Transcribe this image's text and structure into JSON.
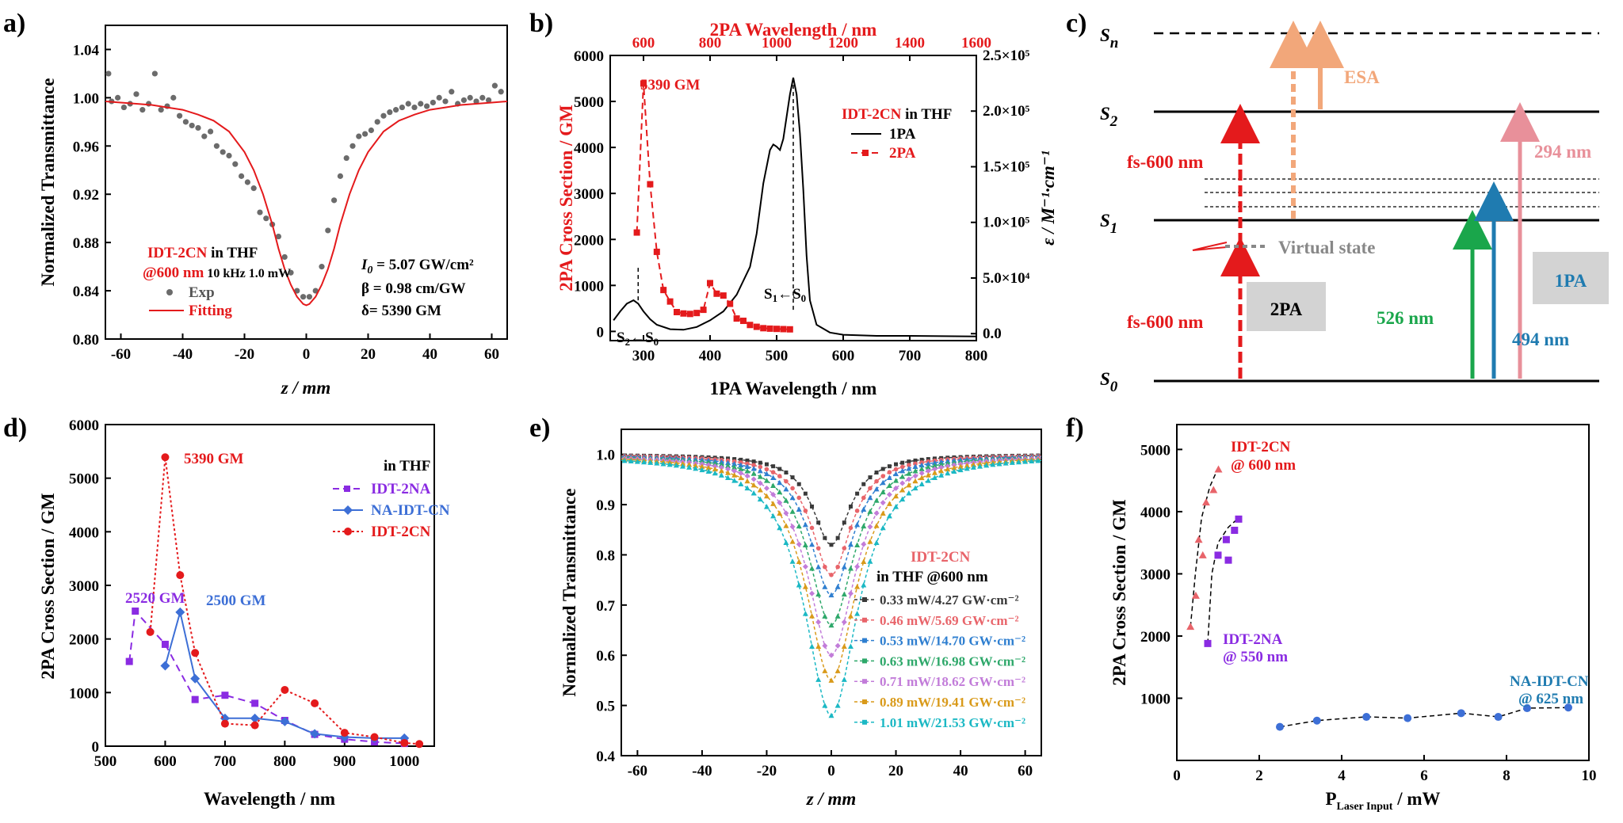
{
  "colors": {
    "red": "#e41a1c",
    "gray": "#6b6b6b",
    "blue": "#3d6fd6",
    "purple": "#8a2be2",
    "black": "#000000",
    "orange": "#f2a77a",
    "pink": "#e8909a",
    "green": "#1aa64b",
    "teal": "#1f7bb0"
  },
  "panels": {
    "a": {
      "letter": "a)",
      "annotations": {
        "compound": "IDT-2CN",
        "solvent": " in THF",
        "wavelength": "@600 nm",
        "conditions": " 10 kHz 1.0 mW",
        "i0": "I",
        "i0_sub": "0",
        "i0_value": " = 5.07 GW/cm²",
        "beta": "β = 0.98 cm/GW",
        "delta": "δ= 5390 GM"
      },
      "legend": [
        "Exp",
        "Fitting"
      ]
    },
    "b": {
      "letter": "b)",
      "annotations": {
        "peak": "5390 GM",
        "compound": "IDT-2CN",
        "solvent": " in THF",
        "s1": "S",
        "s1_sub": "1",
        "s1_arrow": "←S",
        "s1_sub0": "0",
        "s2": "S",
        "s2_sub": "2",
        "s2_arrow": "←S",
        "s2_sub0": "0"
      },
      "legend": [
        "1PA",
        "2PA"
      ]
    },
    "c": {
      "letter": "c)",
      "levels": {
        "sn": "S",
        "sn_sub": "n",
        "s2": "S",
        "s2_sub": "2",
        "s1": "S",
        "s1_sub": "1",
        "s0": "S",
        "s0_sub": "0"
      },
      "labels": {
        "esa": "ESA",
        "fs_top": "fs-600 nm",
        "fs_bottom": "fs-600 nm",
        "virtual": "Virtual state",
        "twopa": "2PA",
        "onepa": "1PA",
        "nm526": "526 nm",
        "nm494": "494 nm",
        "nm294": "294 nm"
      }
    },
    "d": {
      "letter": "d)",
      "annotations": {
        "peak": "5390 GM",
        "na_2na": "2520 GM",
        "na_cn": "2500 GM",
        "legend_title": "in THF"
      },
      "legend": [
        "IDT-2NA",
        "NA-IDT-CN",
        "IDT-2CN"
      ]
    },
    "e": {
      "letter": "e)",
      "annotations": {
        "compound": "IDT-2CN",
        "solvent": "in THF @600 nm"
      },
      "legend": [
        "0.33 mW/4.27 GW·cm⁻²",
        "0.46 mW/5.69 GW·cm⁻²",
        "0.53 mW/14.70 GW·cm⁻²",
        "0.63 mW/16.98 GW·cm⁻²",
        "0.71 mW/18.62 GW·cm⁻²",
        "0.89 mW/19.41 GW·cm⁻²",
        "1.01 mW/21.53 GW·cm⁻²"
      ]
    },
    "f": {
      "letter": "f)",
      "annotations": {
        "idt2cn": "IDT-2CN",
        "idt2cn_wl": "@ 600 nm",
        "idt2na": "IDT-2NA",
        "idt2na_wl": "@ 550 nm",
        "naidtcn": "NA-IDT-CN",
        "naidtcn_wl": "@ 625 nm"
      }
    }
  },
  "chart_data": [
    {
      "id": "a",
      "type": "scatter",
      "xlabel": "z / mm",
      "ylabel": "Normalized Transmittance",
      "xlim": [
        -65,
        65
      ],
      "ylim": [
        0.8,
        1.06
      ],
      "xticks": [
        -60,
        -40,
        -20,
        0,
        20,
        40,
        60
      ],
      "yticks": [
        0.8,
        0.84,
        0.88,
        0.92,
        0.96,
        1.0,
        1.04
      ],
      "series": [
        {
          "name": "Exp",
          "type": "scatter",
          "x": [
            -64,
            -63,
            -61,
            -59,
            -57,
            -55,
            -53,
            -51,
            -49,
            -47,
            -45,
            -43,
            -41,
            -39,
            -37,
            -35,
            -33,
            -31,
            -29,
            -27,
            -25,
            -23,
            -21,
            -19,
            -17,
            -15,
            -13,
            -11,
            -9,
            -7,
            -5,
            -3,
            -1,
            1,
            3,
            5,
            7,
            9,
            11,
            13,
            15,
            17,
            19,
            21,
            23,
            25,
            27,
            29,
            31,
            33,
            35,
            37,
            39,
            41,
            43,
            45,
            47,
            49,
            51,
            53,
            55,
            57,
            59,
            61,
            63
          ],
          "y": [
            1.02,
            0.997,
            1.0,
            0.992,
            0.995,
            1.003,
            0.99,
            0.995,
            1.02,
            0.99,
            0.993,
            1.0,
            0.985,
            0.98,
            0.977,
            0.975,
            0.968,
            0.972,
            0.96,
            0.955,
            0.952,
            0.945,
            0.935,
            0.93,
            0.925,
            0.905,
            0.9,
            0.895,
            0.885,
            0.868,
            0.855,
            0.84,
            0.835,
            0.835,
            0.84,
            0.86,
            0.89,
            0.915,
            0.935,
            0.95,
            0.96,
            0.968,
            0.97,
            0.973,
            0.98,
            0.985,
            0.988,
            0.99,
            0.992,
            0.995,
            0.992,
            0.995,
            0.993,
            0.996,
            1.0,
            0.997,
            1.005,
            0.995,
            0.998,
            1.0,
            0.997,
            1.0,
            0.998,
            1.01,
            1.005
          ]
        },
        {
          "name": "Fitting",
          "type": "line",
          "x": [
            -65,
            -60,
            -55,
            -50,
            -45,
            -40,
            -35,
            -30,
            -25,
            -20,
            -17,
            -14,
            -11,
            -9,
            -7,
            -5,
            -3,
            -1,
            0,
            1,
            3,
            5,
            7,
            9,
            11,
            14,
            17,
            20,
            25,
            30,
            35,
            40,
            45,
            50,
            55,
            60,
            65
          ],
          "y": [
            0.997,
            0.996,
            0.995,
            0.994,
            0.992,
            0.99,
            0.986,
            0.981,
            0.972,
            0.955,
            0.94,
            0.92,
            0.895,
            0.875,
            0.858,
            0.845,
            0.835,
            0.829,
            0.828,
            0.829,
            0.835,
            0.845,
            0.858,
            0.875,
            0.895,
            0.92,
            0.94,
            0.955,
            0.972,
            0.981,
            0.986,
            0.99,
            0.992,
            0.994,
            0.995,
            0.996,
            0.997
          ]
        }
      ]
    },
    {
      "id": "b",
      "type": "line",
      "xlabel": "1PA Wavelength / nm",
      "x2label": "2PA Wavelength / nm",
      "ylabel": "2PA Cross Section / GM",
      "y2label": "ε / M⁻¹·cm⁻¹",
      "xlim": [
        250,
        800
      ],
      "x2lim": [
        500,
        1600
      ],
      "ylim": [
        -200,
        6000
      ],
      "y2lim": [
        -6250,
        250000
      ],
      "xticks": [
        300,
        400,
        500,
        600,
        700,
        800
      ],
      "x2ticks": [
        600,
        800,
        1000,
        1200,
        1400,
        1600
      ],
      "yticks": [
        0,
        1000,
        2000,
        3000,
        4000,
        5000,
        6000
      ],
      "y2ticks": [
        "0.0",
        "5.0×10⁴",
        "1.0×10⁵",
        "1.5×10⁵",
        "2.0×10⁵",
        "2.5×10⁵"
      ],
      "series": [
        {
          "name": "1PA",
          "axis": "y2",
          "x": [
            255,
            265,
            275,
            285,
            292,
            300,
            310,
            320,
            340,
            360,
            380,
            400,
            420,
            440,
            460,
            470,
            480,
            490,
            495,
            500,
            505,
            510,
            515,
            520,
            525,
            530,
            535,
            540,
            545,
            550,
            560,
            580,
            600,
            650,
            700,
            800
          ],
          "y": [
            12000,
            20000,
            27000,
            30000,
            27000,
            20000,
            13000,
            8000,
            4000,
            3500,
            6000,
            12000,
            20000,
            35000,
            60000,
            90000,
            135000,
            165000,
            170000,
            168000,
            165000,
            175000,
            195000,
            215000,
            230000,
            215000,
            180000,
            130000,
            70000,
            30000,
            8000,
            1000,
            -1000,
            -2000,
            -2000,
            -2500
          ]
        },
        {
          "name": "2PA",
          "axis": "y",
          "x": [
            290,
            300,
            310,
            320,
            330,
            340,
            350,
            360,
            370,
            380,
            390,
            400,
            410,
            420,
            430,
            440,
            450,
            460,
            470,
            480,
            490,
            500,
            510,
            520
          ],
          "y": [
            2150,
            5390,
            3200,
            1730,
            900,
            650,
            420,
            390,
            380,
            400,
            470,
            1050,
            820,
            780,
            600,
            280,
            230,
            140,
            100,
            70,
            60,
            55,
            50,
            45
          ]
        }
      ]
    },
    {
      "id": "d",
      "type": "line",
      "xlabel": "Wavelength / nm",
      "ylabel": "2PA Cross Section / GM",
      "xlim": [
        500,
        1050
      ],
      "ylim": [
        0,
        6000
      ],
      "xticks": [
        500,
        600,
        700,
        800,
        900,
        1000
      ],
      "yticks": [
        0,
        1000,
        2000,
        3000,
        4000,
        5000,
        6000
      ],
      "series": [
        {
          "name": "IDT-2NA",
          "x": [
            540,
            550,
            600,
            650,
            700,
            750,
            800,
            850,
            900,
            950,
            1000
          ],
          "y": [
            1580,
            2520,
            1900,
            870,
            950,
            800,
            480,
            220,
            130,
            80,
            50
          ]
        },
        {
          "name": "NA-IDT-CN",
          "x": [
            600,
            625,
            650,
            700,
            750,
            800,
            850,
            900,
            950,
            1000
          ],
          "y": [
            1500,
            2500,
            1260,
            520,
            520,
            460,
            230,
            170,
            150,
            150
          ]
        },
        {
          "name": "IDT-2CN",
          "x": [
            575,
            600,
            625,
            650,
            700,
            750,
            800,
            850,
            900,
            950,
            1000,
            1025
          ],
          "y": [
            2130,
            5390,
            3190,
            1740,
            420,
            390,
            1050,
            800,
            250,
            170,
            60,
            40
          ]
        }
      ]
    },
    {
      "id": "e",
      "type": "line",
      "xlabel": "z / mm",
      "ylabel": "Normalized Transmittance",
      "xlim": [
        -65,
        65
      ],
      "ylim": [
        0.4,
        1.05
      ],
      "xticks": [
        -60,
        -40,
        -20,
        0,
        20,
        40,
        60
      ],
      "yticks": [
        0.4,
        0.5,
        0.6,
        0.7,
        0.8,
        0.9,
        1.0
      ],
      "series": [
        {
          "name": "0.33 mW/4.27 GW·cm⁻²",
          "min": 0.82,
          "width": 7.0
        },
        {
          "name": "0.46 mW/5.69 GW·cm⁻²",
          "min": 0.76,
          "width": 7.5
        },
        {
          "name": "0.53 mW/14.70 GW·cm⁻²",
          "min": 0.72,
          "width": 8.0
        },
        {
          "name": "0.63 mW/16.98 GW·cm⁻²",
          "min": 0.66,
          "width": 8.5
        },
        {
          "name": "0.71 mW/18.62 GW·cm⁻²",
          "min": 0.6,
          "width": 9.0
        },
        {
          "name": "0.89 mW/19.41 GW·cm⁻²",
          "min": 0.55,
          "width": 9.5
        },
        {
          "name": "1.01 mW/21.53 GW·cm⁻²",
          "min": 0.48,
          "width": 10.0
        }
      ]
    },
    {
      "id": "f",
      "type": "scatter",
      "xlabel": "P",
      "xlabel_sub": "Laser Input",
      "xlabel_tail": " / mW",
      "ylabel": "2PA Cross Section / GM",
      "xlim": [
        0,
        10
      ],
      "ylim": [
        0,
        5400
      ],
      "xticks": [
        0,
        2,
        4,
        6,
        8,
        10
      ],
      "yticks": [
        1000,
        2000,
        3000,
        4000,
        5000
      ],
      "series": [
        {
          "name": "IDT-2CN",
          "x": [
            0.33,
            0.46,
            0.53,
            0.63,
            0.71,
            0.89,
            1.01
          ],
          "y": [
            2150,
            2650,
            3550,
            3300,
            4150,
            4350,
            4680
          ]
        },
        {
          "name": "IDT-2NA",
          "x": [
            0.75,
            1.0,
            1.2,
            1.4,
            1.5,
            1.25
          ],
          "y": [
            1880,
            3300,
            3550,
            3700,
            3880,
            3220
          ]
        },
        {
          "name": "NA-IDT-CN",
          "x": [
            2.5,
            3.4,
            4.6,
            5.6,
            6.9,
            7.8,
            8.5,
            9.5
          ],
          "y": [
            540,
            640,
            700,
            680,
            760,
            700,
            840,
            850
          ]
        }
      ]
    }
  ]
}
